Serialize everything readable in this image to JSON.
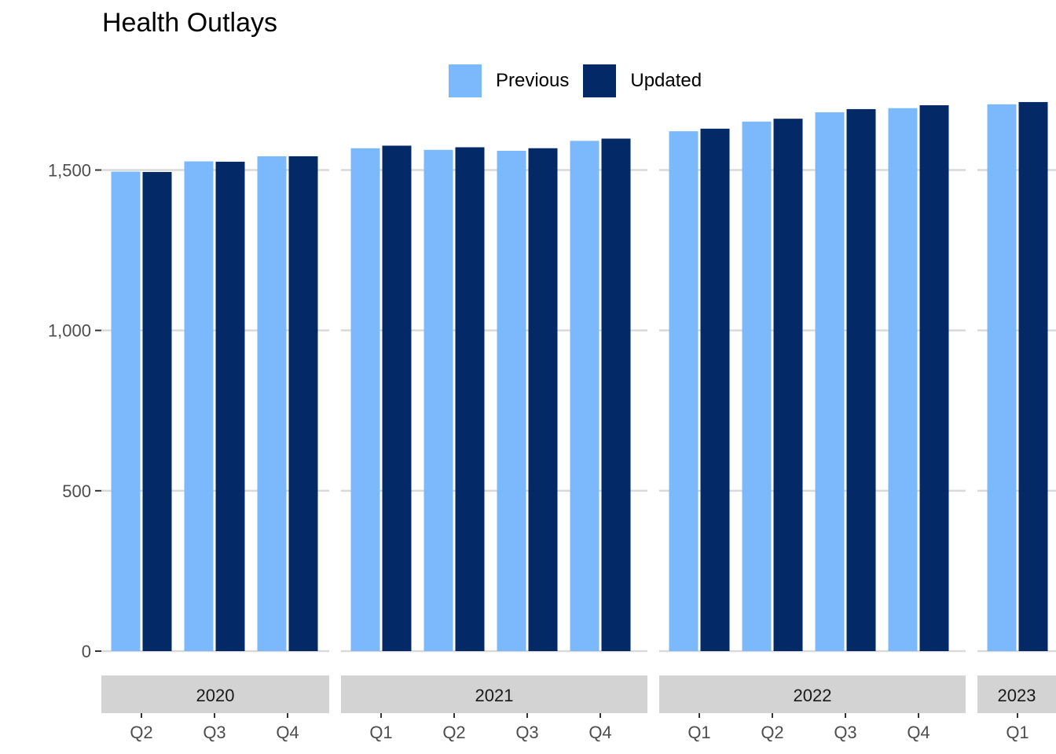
{
  "chart_data": {
    "type": "bar",
    "title": "Health Outlays",
    "xlabel": "",
    "ylabel": "",
    "ylim": [
      0,
      1800
    ],
    "yticks": [
      0,
      500,
      1000,
      1500
    ],
    "ytick_labels": [
      "0",
      "500",
      "1,000",
      "1,500"
    ],
    "grid": true,
    "legend_position": "top",
    "colors": {
      "Previous": "#7cb9fc",
      "Updated": "#032966",
      "grid": "#d9d9d9",
      "strip": "#d3d3d3"
    },
    "facets": [
      {
        "label": "2020",
        "categories": [
          "Q2",
          "Q3",
          "Q4"
        ]
      },
      {
        "label": "2021",
        "categories": [
          "Q1",
          "Q2",
          "Q3",
          "Q4"
        ]
      },
      {
        "label": "2022",
        "categories": [
          "Q1",
          "Q2",
          "Q3",
          "Q4"
        ]
      },
      {
        "label": "2023",
        "categories": [
          "Q1"
        ]
      }
    ],
    "series": [
      {
        "name": "Previous",
        "values": [
          1495,
          1527,
          1543,
          1568,
          1563,
          1560,
          1591,
          1621,
          1651,
          1680,
          1693,
          1705
        ]
      },
      {
        "name": "Updated",
        "values": [
          1494,
          1526,
          1543,
          1576,
          1571,
          1568,
          1598,
          1629,
          1660,
          1690,
          1702,
          1712
        ]
      }
    ]
  }
}
